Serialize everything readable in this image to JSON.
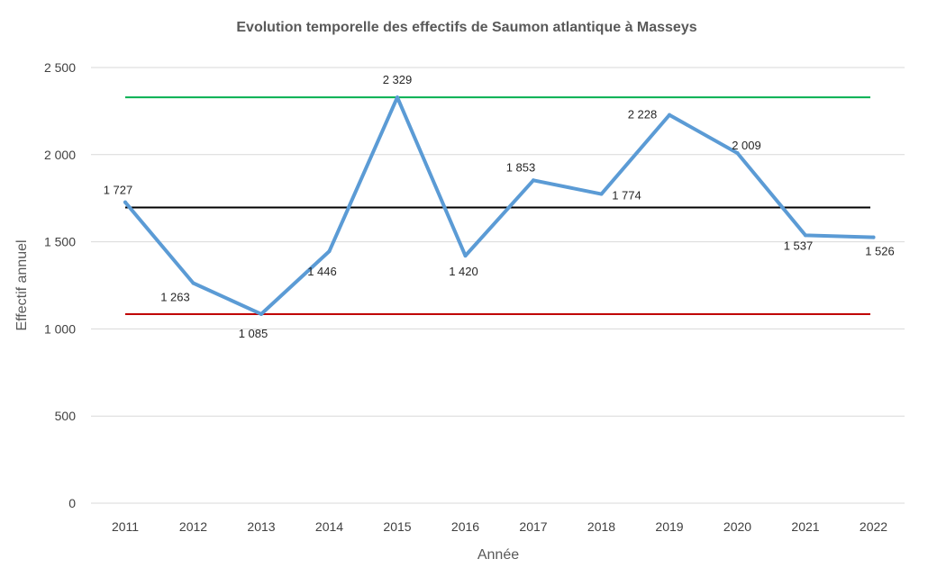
{
  "chart_data": {
    "type": "line",
    "title": "Evolution temporelle des effectifs de Saumon atlantique à Masseys",
    "xlabel": "Année",
    "ylabel": "Effectif annuel",
    "categories": [
      "2011",
      "2012",
      "2013",
      "2014",
      "2015",
      "2016",
      "2017",
      "2018",
      "2019",
      "2020",
      "2021",
      "2022"
    ],
    "series": [
      {
        "values": [
          1727,
          1263,
          1085,
          1446,
          2329,
          1420,
          1853,
          1774,
          2228,
          2009,
          1537,
          1526
        ],
        "labels": [
          "1 727",
          "1 263",
          "1 085",
          "1 446",
          "2 329",
          "1 420",
          "1 853",
          "1 774",
          "2 228",
          "2 009",
          "1 537",
          "1 526"
        ],
        "color": "#5B9BD5"
      }
    ],
    "reference_lines": [
      {
        "value": 2329,
        "color": "#00B050"
      },
      {
        "value": 1697,
        "color": "#000000"
      },
      {
        "value": 1085,
        "color": "#C00000"
      }
    ],
    "ylim": [
      0,
      2500
    ],
    "yticks": [
      0,
      500,
      1000,
      1500,
      2000,
      2500
    ],
    "ytick_labels": [
      "0",
      "500",
      "1 000",
      "1 500",
      "2 000",
      "2 500"
    ],
    "grid": true,
    "grid_color": "#D9D9D9",
    "legend": "none"
  }
}
